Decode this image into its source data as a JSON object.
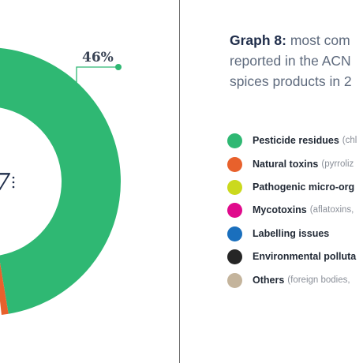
{
  "title": {
    "lead": "Graph 8:",
    "lines": [
      "most com",
      "reported in the ACN",
      "spices products in 2"
    ]
  },
  "center_label": "7",
  "colors": {
    "pesticide": "#2fb873",
    "natural_toxins": "#e8612c",
    "pathogenic": "#cbd91d",
    "mycotoxins": "#e00a8c",
    "labelling": "#1a6fbd",
    "environmental": "#262626",
    "others": "#c4b49c",
    "leader": "#2fb873"
  },
  "chart_data": {
    "type": "pie",
    "title": "Graph 8: most com reported in the ACN spices products in 2",
    "legend_position": "right",
    "labels": [
      "Pesticide residues",
      "Natural toxins",
      "Pathogenic micro-org",
      "Mycotoxins",
      "Labelling issues",
      "Environmental polluta",
      "Others"
    ],
    "visible_values": {
      "Pesticide residues": 46
    },
    "data_labels": [
      "46%"
    ]
  },
  "legend": [
    {
      "label": "Pesticide residues",
      "detail": "(chl",
      "icon": "green-circle-icon"
    },
    {
      "label": "Natural toxins",
      "detail": "(pyrroliz",
      "icon": "orange-circle-icon"
    },
    {
      "label": "Pathogenic micro-org",
      "detail": "",
      "icon": "yellow-circle-icon"
    },
    {
      "label": "Mycotoxins",
      "detail": "(aflatoxins, ",
      "icon": "magenta-circle-icon"
    },
    {
      "label": "Labelling issues",
      "detail": "",
      "icon": "blue-circle-icon"
    },
    {
      "label": "Environmental polluta",
      "detail": "",
      "icon": "black-circle-icon"
    },
    {
      "label": "Others",
      "detail": "(foreign bodies, ",
      "icon": "beige-circle-icon"
    }
  ]
}
